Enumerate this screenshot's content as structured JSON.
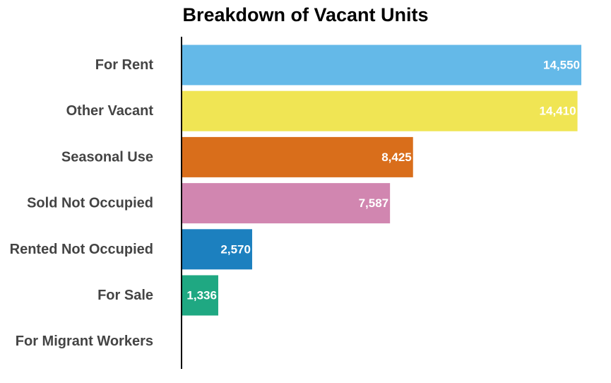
{
  "chart_data": {
    "type": "bar",
    "orientation": "horizontal",
    "title": "Breakdown of Vacant Units",
    "xlabel": "",
    "ylabel": "",
    "xlim": [
      0,
      14550
    ],
    "grid": false,
    "legend": "none",
    "categories": [
      "For Rent",
      "Other Vacant",
      "Seasonal Use",
      "Sold Not Occupied",
      "Rented Not Occupied",
      "For Sale",
      "For Migrant Workers"
    ],
    "values": [
      14550,
      14410,
      8425,
      7587,
      2570,
      1336,
      0
    ],
    "value_labels": [
      "14,550",
      "14,410",
      "8,425",
      "7,587",
      "2,570",
      "1,336",
      ""
    ],
    "colors": [
      "#64b9e8",
      "#f0e554",
      "#d96e1b",
      "#d186b0",
      "#1c80bf",
      "#1fa882",
      "#888888"
    ]
  }
}
